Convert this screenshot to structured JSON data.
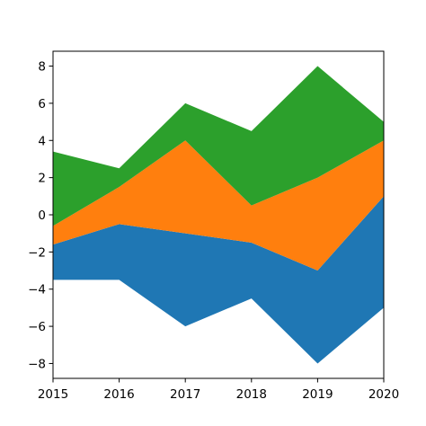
{
  "chart_data": {
    "type": "area",
    "title": "",
    "xlabel": "",
    "ylabel": "",
    "x": [
      2015,
      2016,
      2017,
      2018,
      2019,
      2020
    ],
    "xlim": [
      2015,
      2020
    ],
    "ylim": [
      -8.8,
      8.8
    ],
    "xticks": [
      "2015",
      "2016",
      "2017",
      "2018",
      "2019",
      "2020"
    ],
    "yticks": [
      "8",
      "6",
      "4",
      "2",
      "0",
      "−2",
      "−4",
      "−6",
      "−8"
    ],
    "ytick_values": [
      8,
      6,
      4,
      2,
      0,
      -2,
      -4,
      -6,
      -8
    ],
    "baseline": [
      -3.5,
      -3.5,
      -6,
      -4.5,
      -8,
      -5
    ],
    "series": [
      {
        "values": [
          1.9,
          3,
          5,
          3,
          5,
          6
        ],
        "color": "#1f77b4"
      },
      {
        "values": [
          1,
          2,
          5,
          2,
          5,
          3
        ],
        "color": "#ff7f0e"
      },
      {
        "values": [
          4,
          1,
          2,
          4,
          6,
          1
        ],
        "color": "#2ca02c"
      }
    ],
    "grid": false,
    "legend": "none"
  }
}
